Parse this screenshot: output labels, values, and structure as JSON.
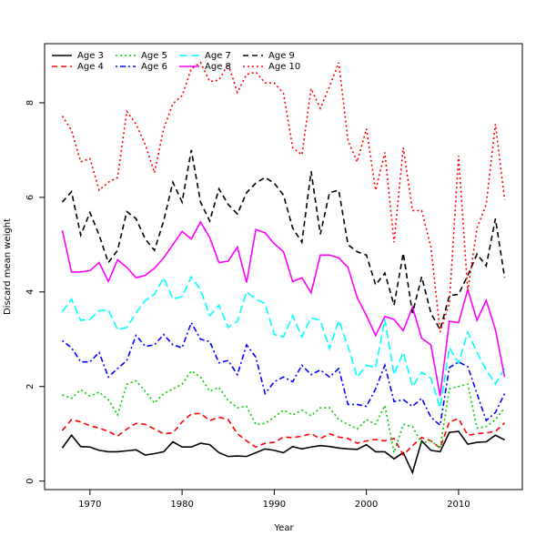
{
  "chart_data": {
    "type": "line",
    "xlabel": "Year",
    "ylabel": "Discard mean weight",
    "x": [
      1967,
      1968,
      1969,
      1970,
      1971,
      1972,
      1973,
      1974,
      1975,
      1976,
      1977,
      1978,
      1979,
      1980,
      1981,
      1982,
      1983,
      1984,
      1985,
      1986,
      1987,
      1988,
      1989,
      1990,
      1991,
      1992,
      1993,
      1994,
      1995,
      1996,
      1997,
      1998,
      1999,
      2000,
      2001,
      2002,
      2003,
      2004,
      2005,
      2006,
      2007,
      2008,
      2009,
      2010,
      2011,
      2012,
      2013,
      2014,
      2015
    ],
    "xlim": [
      1965.08,
      2016.92
    ],
    "xticks": [
      1970,
      1980,
      1990,
      2000,
      2010
    ],
    "ylim": [
      -0.18,
      9.25
    ],
    "yticks": [
      0,
      2,
      4,
      6,
      8
    ],
    "legend": "top-left",
    "series": [
      {
        "name": "Age 3",
        "color": "#000000",
        "linestyle": "solid",
        "values": [
          0.7,
          0.97,
          0.73,
          0.72,
          0.65,
          0.62,
          0.62,
          0.64,
          0.66,
          0.55,
          0.58,
          0.62,
          0.83,
          0.72,
          0.72,
          0.8,
          0.77,
          0.6,
          0.52,
          0.53,
          0.52,
          0.6,
          0.68,
          0.65,
          0.6,
          0.73,
          0.68,
          0.72,
          0.75,
          0.73,
          0.7,
          0.68,
          0.67,
          0.77,
          0.62,
          0.62,
          0.47,
          0.6,
          0.18,
          0.85,
          0.65,
          0.62,
          1.03,
          1.05,
          0.78,
          0.82,
          0.83,
          0.97,
          0.87
        ]
      },
      {
        "name": "Age 4",
        "color": "#ff0000",
        "linestyle": "dashed",
        "values": [
          1.07,
          1.3,
          1.25,
          1.17,
          1.12,
          1.05,
          0.95,
          1.1,
          1.22,
          1.2,
          1.1,
          1.0,
          1.02,
          1.25,
          1.42,
          1.43,
          1.28,
          1.35,
          1.3,
          1.0,
          0.85,
          0.72,
          0.8,
          0.82,
          0.93,
          0.92,
          0.95,
          1.0,
          0.9,
          1.0,
          0.93,
          0.9,
          0.8,
          0.85,
          0.88,
          0.85,
          0.9,
          0.55,
          0.75,
          0.92,
          0.85,
          0.7,
          1.25,
          1.32,
          0.97,
          1.0,
          1.02,
          1.05,
          1.23
        ]
      },
      {
        "name": "Age 5",
        "color": "#00cd00",
        "linestyle": "dotted",
        "values": [
          1.82,
          1.75,
          1.93,
          1.8,
          1.88,
          1.72,
          1.4,
          2.05,
          2.12,
          1.9,
          1.65,
          1.85,
          1.95,
          2.05,
          2.33,
          2.2,
          1.9,
          1.98,
          1.7,
          1.55,
          1.58,
          1.2,
          1.22,
          1.35,
          1.5,
          1.4,
          1.5,
          1.38,
          1.55,
          1.55,
          1.3,
          1.2,
          1.1,
          1.3,
          1.2,
          1.6,
          0.6,
          1.2,
          1.15,
          0.8,
          0.85,
          0.7,
          1.95,
          2.0,
          2.05,
          1.12,
          1.15,
          1.3,
          1.55
        ]
      },
      {
        "name": "Age 6",
        "color": "#0000ff",
        "linestyle": "dashdot",
        "values": [
          2.97,
          2.82,
          2.52,
          2.52,
          2.72,
          2.2,
          2.38,
          2.55,
          3.08,
          2.85,
          2.88,
          3.1,
          2.88,
          2.82,
          3.35,
          3.0,
          2.95,
          2.5,
          2.55,
          2.25,
          2.88,
          2.62,
          1.85,
          2.1,
          2.2,
          2.1,
          2.45,
          2.25,
          2.35,
          2.2,
          2.38,
          1.62,
          1.62,
          1.58,
          1.95,
          2.45,
          1.68,
          1.72,
          1.58,
          1.75,
          1.35,
          1.18,
          2.4,
          2.52,
          2.42,
          1.85,
          1.28,
          1.45,
          1.85
        ]
      },
      {
        "name": "Age 7",
        "color": "#00ffff",
        "linestyle": "longdash",
        "values": [
          3.58,
          3.85,
          3.4,
          3.42,
          3.6,
          3.62,
          3.2,
          3.25,
          3.55,
          3.82,
          3.95,
          4.3,
          3.85,
          3.9,
          4.32,
          4.05,
          3.5,
          3.72,
          3.25,
          3.38,
          4.0,
          3.85,
          3.75,
          3.1,
          3.05,
          3.5,
          3.05,
          3.45,
          3.4,
          2.8,
          3.4,
          2.85,
          2.2,
          2.45,
          2.4,
          3.42,
          2.25,
          2.72,
          2.0,
          2.3,
          2.18,
          1.55,
          2.82,
          2.5,
          3.15,
          2.72,
          2.35,
          2.05,
          2.38
        ]
      },
      {
        "name": "Age 8",
        "color": "#ff00ff",
        "linestyle": "solid",
        "values": [
          5.3,
          4.42,
          4.42,
          4.45,
          4.62,
          4.22,
          4.68,
          4.52,
          4.3,
          4.35,
          4.5,
          4.72,
          5.0,
          5.28,
          5.12,
          5.48,
          5.15,
          4.62,
          4.65,
          4.95,
          4.2,
          5.32,
          5.25,
          5.02,
          4.85,
          4.22,
          4.3,
          3.98,
          4.78,
          4.78,
          4.72,
          4.52,
          3.88,
          3.5,
          3.08,
          3.48,
          3.42,
          3.18,
          3.68,
          3.02,
          2.88,
          1.8,
          3.38,
          3.35,
          4.05,
          3.4,
          3.82,
          3.2,
          2.2
        ]
      },
      {
        "name": "Age 9",
        "color": "#000000",
        "linestyle": "dashed",
        "values": [
          5.9,
          6.12,
          5.2,
          5.68,
          5.2,
          4.62,
          4.88,
          5.7,
          5.55,
          5.12,
          4.88,
          5.5,
          6.32,
          5.9,
          7.0,
          5.9,
          5.5,
          6.18,
          5.85,
          5.65,
          6.1,
          6.3,
          6.42,
          6.3,
          6.05,
          5.35,
          5.05,
          6.55,
          5.22,
          6.1,
          6.15,
          5.0,
          4.85,
          4.78,
          4.15,
          4.4,
          3.72,
          4.82,
          3.55,
          4.32,
          3.55,
          3.2,
          3.92,
          3.95,
          4.35,
          4.8,
          4.55,
          5.55,
          4.3
        ]
      },
      {
        "name": "Age 10",
        "color": "#ff0000",
        "linestyle": "dotted",
        "values": [
          7.72,
          7.42,
          6.75,
          6.82,
          6.15,
          6.32,
          6.42,
          7.82,
          7.55,
          7.12,
          6.52,
          7.45,
          7.98,
          8.15,
          8.72,
          8.85,
          8.45,
          8.48,
          8.82,
          8.22,
          8.6,
          8.65,
          8.42,
          8.42,
          8.2,
          7.05,
          6.9,
          8.3,
          7.88,
          8.35,
          8.85,
          7.2,
          6.75,
          7.45,
          6.15,
          6.95,
          5.05,
          7.05,
          5.72,
          5.72,
          4.95,
          3.15,
          3.75,
          6.88,
          4.02,
          5.35,
          5.85,
          7.55,
          5.95
        ]
      }
    ]
  }
}
